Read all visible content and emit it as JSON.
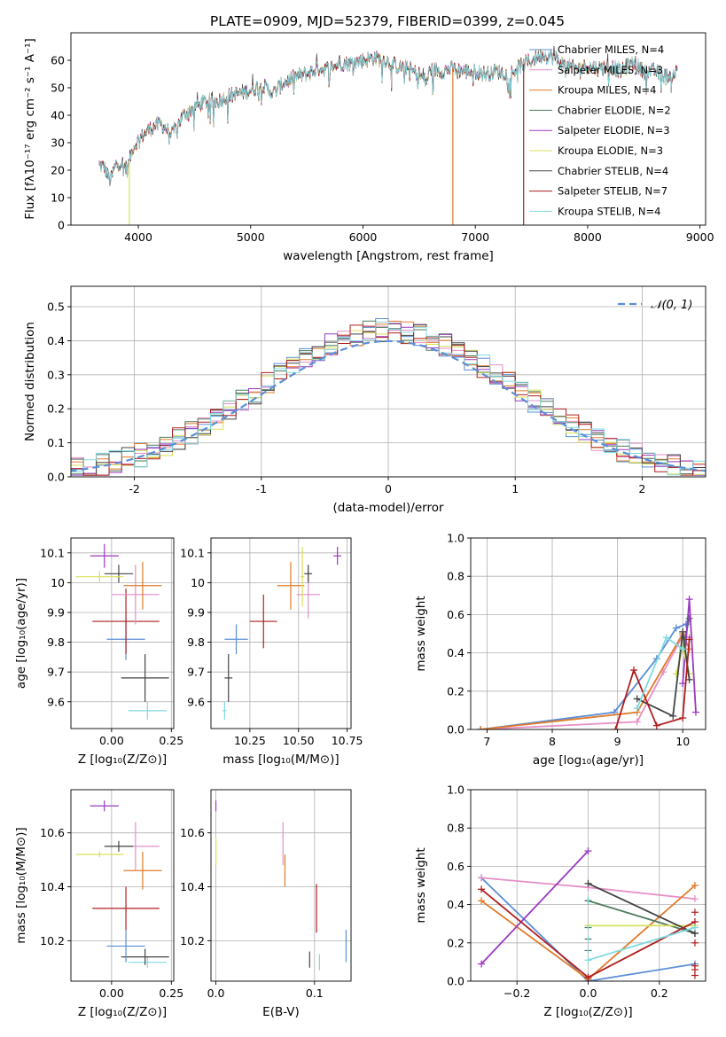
{
  "figure": {
    "title": "PLATE=0909, MJD=52379, FIBERID=0399, z=0.045"
  },
  "chart_data": [
    {
      "id": "spectrum",
      "type": "line",
      "xlabel": "wavelength [Angstrom, rest frame]",
      "ylabel": "Flux [fλ10⁻¹⁷ erg cm⁻² s⁻¹ A⁻¹]",
      "xlim": [
        3400,
        9050
      ],
      "ylim": [
        0,
        70
      ],
      "xticks": [
        4000,
        5000,
        6000,
        7000,
        8000,
        9000
      ],
      "yticks": [
        0,
        10,
        20,
        30,
        40,
        50,
        60
      ],
      "grid": false,
      "legend_position": "upper-right",
      "series": [
        {
          "name": "Chabrier MILES, N_SSP=4",
          "color": "#5b8fd6"
        },
        {
          "name": "Salpeter MILES, N_SSP=3",
          "color": "#e58fc6"
        },
        {
          "name": "Kroupa MILES, N_SSP=4",
          "color": "#e07b2a"
        },
        {
          "name": "Chabrier ELODIE, N_SSP=2",
          "color": "#4e7a5e"
        },
        {
          "name": "Salpeter ELODIE, N_SSP=3",
          "color": "#9a3ac0"
        },
        {
          "name": "Kroupa ELODIE, N_SSP=3",
          "color": "#d8e05a"
        },
        {
          "name": "Chabrier STELIB, N_SSP=4",
          "color": "#444444"
        },
        {
          "name": "Salpeter STELIB, N_SSP=7",
          "color": "#b01e1e"
        },
        {
          "name": "Kroupa STELIB, N_SSP=4",
          "color": "#7fd9e0"
        }
      ],
      "continuum_points": [
        [
          3650,
          22
        ],
        [
          3700,
          21
        ],
        [
          3750,
          16
        ],
        [
          3800,
          22
        ],
        [
          3850,
          23
        ],
        [
          3900,
          20
        ],
        [
          3950,
          28
        ],
        [
          4000,
          31
        ],
        [
          4100,
          35
        ],
        [
          4200,
          37
        ],
        [
          4300,
          33
        ],
        [
          4400,
          40
        ],
        [
          4500,
          43
        ],
        [
          4600,
          45
        ],
        [
          4700,
          45
        ],
        [
          4800,
          47
        ],
        [
          4900,
          48
        ],
        [
          5000,
          49
        ],
        [
          5100,
          51
        ],
        [
          5200,
          48
        ],
        [
          5300,
          52
        ],
        [
          5400,
          54
        ],
        [
          5500,
          55
        ],
        [
          5600,
          57
        ],
        [
          5700,
          57
        ],
        [
          5800,
          59
        ],
        [
          5900,
          59
        ],
        [
          6000,
          60
        ],
        [
          6100,
          61
        ],
        [
          6200,
          60
        ],
        [
          6300,
          58
        ],
        [
          6400,
          57
        ],
        [
          6500,
          55
        ],
        [
          6563,
          52
        ],
        [
          6600,
          57
        ],
        [
          6700,
          56
        ],
        [
          6800,
          57
        ],
        [
          6900,
          56
        ],
        [
          7000,
          56
        ],
        [
          7100,
          55
        ],
        [
          7200,
          56
        ],
        [
          7300,
          55
        ],
        [
          7400,
          58
        ],
        [
          7500,
          60
        ],
        [
          7600,
          62
        ],
        [
          7700,
          61
        ],
        [
          7800,
          58
        ],
        [
          7900,
          57
        ],
        [
          8000,
          58
        ],
        [
          8100,
          57
        ],
        [
          8200,
          58
        ],
        [
          8300,
          56
        ],
        [
          8400,
          59
        ],
        [
          8500,
          56
        ],
        [
          8600,
          56
        ],
        [
          8700,
          54
        ],
        [
          8800,
          56
        ]
      ],
      "dropouts": [
        {
          "x": 3920,
          "color": "#d8e05a"
        },
        {
          "x": 6800,
          "color": "#e07b2a"
        },
        {
          "x": 7430,
          "color": "#b01e1e"
        }
      ]
    },
    {
      "id": "residuals",
      "type": "histogram",
      "xlabel": "(data-model)/error",
      "ylabel": "Normed distribution",
      "xlim": [
        -2.5,
        2.5
      ],
      "ylim": [
        0,
        0.56
      ],
      "xticks": [
        -2,
        -1,
        0,
        1,
        2
      ],
      "yticks": [
        0.0,
        0.1,
        0.2,
        0.3,
        0.4,
        0.5
      ],
      "grid": true,
      "legend_position": "upper-right",
      "reference_curve": {
        "name": "𝒩(0, 1)",
        "color": "#5b8fd6"
      },
      "bin_width": 0.1,
      "bin_start": -2.5,
      "series_colors": [
        "#5b8fd6",
        "#e58fc6",
        "#e07b2a",
        "#4e7a5e",
        "#9a3ac0",
        "#d8e05a",
        "#444444",
        "#b01e1e",
        "#7fd9e0"
      ]
    },
    {
      "id": "age_vs_Z",
      "type": "errorbar",
      "xlabel": "Z [log₁₀(Z/Z⊙)]",
      "ylabel": "age  [log₁₀(age/yr)]",
      "xlim": [
        -0.17,
        0.26
      ],
      "ylim": [
        9.51,
        10.15
      ],
      "xticks": [
        0.0,
        0.25
      ],
      "xticklabels": [
        "0.00",
        "0.25"
      ],
      "yticks": [
        9.6,
        9.7,
        9.8,
        9.9,
        10.0,
        10.1
      ],
      "grid": true,
      "points": [
        {
          "x": 0.15,
          "y": 9.57,
          "xerr": 0.08,
          "yerr": 0.03,
          "color": "#7fd9e0"
        },
        {
          "x": 0.14,
          "y": 9.68,
          "xerr": 0.1,
          "yerr": 0.08,
          "color": "#444444"
        },
        {
          "x": 0.06,
          "y": 9.81,
          "xerr": 0.08,
          "yerr": 0.07,
          "color": "#5b8fd6"
        },
        {
          "x": 0.06,
          "y": 9.87,
          "xerr": 0.14,
          "yerr": 0.11,
          "color": "#b01e1e"
        },
        {
          "x": 0.1,
          "y": 9.96,
          "xerr": 0.1,
          "yerr": 0.1,
          "color": "#e58fc6"
        },
        {
          "x": 0.13,
          "y": 9.99,
          "xerr": 0.08,
          "yerr": 0.08,
          "color": "#e07b2a"
        },
        {
          "x": 0.03,
          "y": 10.03,
          "xerr": 0.06,
          "yerr": 0.03,
          "color": "#444444"
        },
        {
          "x": -0.05,
          "y": 10.02,
          "xerr": 0.1,
          "yerr": 0.02,
          "color": "#d8e05a"
        },
        {
          "x": -0.03,
          "y": 10.09,
          "xerr": 0.06,
          "yerr": 0.04,
          "color": "#9a3ac0"
        }
      ]
    },
    {
      "id": "age_vs_mass",
      "type": "errorbar",
      "xlabel": "mass [log₁₀(M/M⊙)]",
      "ylabel": "",
      "xlim": [
        10.05,
        10.77
      ],
      "ylim": [
        9.51,
        10.15
      ],
      "xticks": [
        10.25,
        10.5,
        10.75
      ],
      "xticklabels": [
        "10.25",
        "10.50",
        "10.75"
      ],
      "yticks": [
        9.6,
        9.7,
        9.8,
        9.9,
        10.0,
        10.1
      ],
      "grid": true,
      "points": [
        {
          "x": 10.12,
          "y": 9.57,
          "xerr": 0.01,
          "yerr": 0.03,
          "color": "#7fd9e0"
        },
        {
          "x": 10.14,
          "y": 9.68,
          "xerr": 0.02,
          "yerr": 0.08,
          "color": "#444444"
        },
        {
          "x": 10.18,
          "y": 9.81,
          "xerr": 0.06,
          "yerr": 0.05,
          "color": "#5b8fd6"
        },
        {
          "x": 10.32,
          "y": 9.87,
          "xerr": 0.07,
          "yerr": 0.09,
          "color": "#b01e1e"
        },
        {
          "x": 10.55,
          "y": 9.96,
          "xerr": 0.06,
          "yerr": 0.08,
          "color": "#e58fc6"
        },
        {
          "x": 10.46,
          "y": 9.99,
          "xerr": 0.07,
          "yerr": 0.08,
          "color": "#e07b2a"
        },
        {
          "x": 10.55,
          "y": 10.03,
          "xerr": 0.02,
          "yerr": 0.03,
          "color": "#444444"
        },
        {
          "x": 10.52,
          "y": 10.02,
          "xerr": 0.01,
          "yerr": 0.1,
          "color": "#d8e05a"
        },
        {
          "x": 10.7,
          "y": 10.09,
          "xerr": 0.02,
          "yerr": 0.03,
          "color": "#9a3ac0"
        }
      ]
    },
    {
      "id": "mass_weight_vs_age",
      "type": "line",
      "xlabel": "age  [log₁₀(age/yr)]",
      "ylabel": "mass weight",
      "xlim": [
        6.75,
        10.35
      ],
      "ylim": [
        0,
        1.0
      ],
      "xticks": [
        7,
        8,
        9,
        10
      ],
      "yticks": [
        0.0,
        0.2,
        0.4,
        0.6,
        0.8,
        1.0
      ],
      "grid": true,
      "series": [
        {
          "color": "#5b8fd6",
          "x": [
            6.9,
            8.95,
            9.6,
            9.9,
            10.05
          ],
          "y": [
            0.0,
            0.09,
            0.37,
            0.53,
            0.55
          ]
        },
        {
          "color": "#e58fc6",
          "x": [
            6.9,
            9.3,
            9.7,
            10.0,
            10.1
          ],
          "y": [
            0.0,
            0.04,
            0.3,
            0.49,
            0.48
          ]
        },
        {
          "color": "#e07b2a",
          "x": [
            6.9,
            9.3,
            10.0,
            10.1
          ],
          "y": [
            0.0,
            0.09,
            0.5,
            0.42
          ]
        },
        {
          "color": "#4e7a5e",
          "x": [
            10.0,
            10.1
          ],
          "y": [
            0.42,
            0.58
          ]
        },
        {
          "color": "#9a3ac0",
          "x": [
            10.0,
            10.1,
            10.2
          ],
          "y": [
            0.24,
            0.68,
            0.09
          ]
        },
        {
          "color": "#d8e05a",
          "x": [
            9.9,
            10.0,
            10.1
          ],
          "y": [
            0.29,
            0.43,
            0.29
          ]
        },
        {
          "color": "#444444",
          "x": [
            9.3,
            9.85,
            10.0,
            10.1
          ],
          "y": [
            0.16,
            0.07,
            0.51,
            0.26
          ]
        },
        {
          "color": "#b01e1e",
          "x": [
            8.97,
            9.25,
            9.6,
            10.0,
            10.1
          ],
          "y": [
            0.0,
            0.31,
            0.02,
            0.06,
            0.47
          ]
        },
        {
          "color": "#7fd9e0",
          "x": [
            9.3,
            9.75,
            10.0
          ],
          "y": [
            0.11,
            0.48,
            0.42
          ]
        }
      ]
    },
    {
      "id": "mass_vs_Z",
      "type": "errorbar",
      "xlabel": "Z [log₁₀(Z/Z⊙)]",
      "ylabel": "mass [log₁₀(M/M⊙)]",
      "xlim": [
        -0.17,
        0.26
      ],
      "ylim": [
        10.05,
        10.76
      ],
      "xticks": [
        0.0,
        0.25
      ],
      "xticklabels": [
        "0.00",
        "0.25"
      ],
      "yticks": [
        10.2,
        10.4,
        10.6
      ],
      "grid": true,
      "points": [
        {
          "x": 0.15,
          "y": 10.12,
          "xerr": 0.08,
          "yerr": 0.02,
          "color": "#7fd9e0"
        },
        {
          "x": 0.14,
          "y": 10.14,
          "xerr": 0.1,
          "yerr": 0.03,
          "color": "#444444"
        },
        {
          "x": 0.06,
          "y": 10.18,
          "xerr": 0.08,
          "yerr": 0.06,
          "color": "#5b8fd6"
        },
        {
          "x": 0.06,
          "y": 10.32,
          "xerr": 0.14,
          "yerr": 0.08,
          "color": "#b01e1e"
        },
        {
          "x": 0.1,
          "y": 10.55,
          "xerr": 0.1,
          "yerr": 0.09,
          "color": "#e58fc6"
        },
        {
          "x": 0.13,
          "y": 10.46,
          "xerr": 0.08,
          "yerr": 0.07,
          "color": "#e07b2a"
        },
        {
          "x": 0.03,
          "y": 10.55,
          "xerr": 0.06,
          "yerr": 0.02,
          "color": "#444444"
        },
        {
          "x": -0.05,
          "y": 10.52,
          "xerr": 0.1,
          "yerr": 0.01,
          "color": "#d8e05a"
        },
        {
          "x": -0.03,
          "y": 10.7,
          "xerr": 0.06,
          "yerr": 0.02,
          "color": "#9a3ac0"
        }
      ]
    },
    {
      "id": "mass_vs_EBV",
      "type": "errorbar",
      "xlabel": "E(B-V)",
      "ylabel": "",
      "xlim": [
        -0.005,
        0.137
      ],
      "ylim": [
        10.05,
        10.76
      ],
      "xticks": [
        0.0,
        0.1
      ],
      "xticklabels": [
        "0.0",
        "0.1"
      ],
      "yticks": [
        10.2,
        10.4,
        10.6
      ],
      "grid": true,
      "points": [
        {
          "x": 0.105,
          "y": 10.12,
          "xerr": 0.0,
          "yerr": 0.03,
          "color": "#7fd9e0"
        },
        {
          "x": 0.095,
          "y": 10.13,
          "xerr": 0.0,
          "yerr": 0.03,
          "color": "#444444"
        },
        {
          "x": 0.132,
          "y": 10.18,
          "xerr": 0.0,
          "yerr": 0.06,
          "color": "#5b8fd6"
        },
        {
          "x": 0.102,
          "y": 10.32,
          "xerr": 0.0,
          "yerr": 0.09,
          "color": "#b01e1e"
        },
        {
          "x": 0.068,
          "y": 10.56,
          "xerr": 0.0,
          "yerr": 0.08,
          "color": "#e58fc6"
        },
        {
          "x": 0.07,
          "y": 10.46,
          "xerr": 0.0,
          "yerr": 0.06,
          "color": "#e07b2a"
        },
        {
          "x": 0.0,
          "y": 10.7,
          "xerr": 0.0,
          "yerr": 0.02,
          "color": "#9a3ac0"
        },
        {
          "x": 0.0,
          "y": 10.53,
          "xerr": 0.0,
          "yerr": 0.05,
          "color": "#d8e05a"
        }
      ]
    },
    {
      "id": "mass_weight_vs_Z",
      "type": "line",
      "xlabel": "Z [log₁₀(Z/Z⊙)]",
      "ylabel": "mass weight",
      "xlim": [
        -0.33,
        0.33
      ],
      "ylim": [
        0,
        1.0
      ],
      "xticks": [
        -0.2,
        0.0,
        0.2
      ],
      "xticklabels": [
        "−0.2",
        "0.0",
        "0.2"
      ],
      "yticks": [
        0.0,
        0.2,
        0.4,
        0.6,
        0.8,
        1.0
      ],
      "grid": true,
      "series": [
        {
          "color": "#5b8fd6",
          "x": [
            -0.3,
            0.0,
            0.3
          ],
          "y": [
            0.54,
            0.0,
            0.09
          ]
        },
        {
          "color": "#e58fc6",
          "x": [
            -0.3,
            0.0,
            0.3
          ],
          "y": [
            0.54,
            0.49,
            0.43
          ]
        },
        {
          "color": "#e07b2a",
          "x": [
            -0.3,
            0.0,
            0.3
          ],
          "y": [
            0.42,
            0.01,
            0.5
          ]
        },
        {
          "color": "#4e7a5e",
          "x": [
            0.0,
            0.3
          ],
          "y": [
            0.42,
            0.25
          ]
        },
        {
          "color": "#9a3ac0",
          "x": [
            -0.3,
            0.0
          ],
          "y": [
            0.09,
            0.68
          ]
        },
        {
          "color": "#d8e05a",
          "x": [
            0.0,
            0.3
          ],
          "y": [
            0.29,
            0.29
          ]
        },
        {
          "color": "#444444",
          "x": [
            0.0,
            0.3
          ],
          "y": [
            0.51,
            0.25
          ]
        },
        {
          "color": "#b01e1e",
          "x": [
            -0.3,
            0.0,
            0.3
          ],
          "y": [
            0.48,
            0.02,
            0.31
          ]
        },
        {
          "color": "#7fd9e0",
          "x": [
            0.0,
            0.3
          ],
          "y": [
            0.11,
            0.28
          ]
        }
      ],
      "extra_markers_x": 0.3,
      "extra_markers": [
        0.03,
        0.06,
        0.08,
        0.2,
        0.36
      ],
      "extra_markers_center": [
        0.16,
        0.22,
        0.28,
        0.42
      ]
    }
  ]
}
